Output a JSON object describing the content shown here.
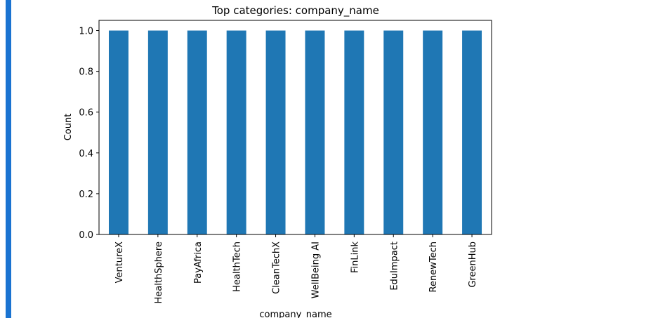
{
  "colors": {
    "accent": "#1a73d1",
    "bar": "#1f77b4",
    "axis": "#000000"
  },
  "chart_data": {
    "type": "bar",
    "title": "Top categories: company_name",
    "xlabel": "company_name",
    "ylabel": "Count",
    "categories": [
      "VentureX",
      "HealthSphere",
      "PayAfrica",
      "HealthTech",
      "CleanTechX",
      "WellBeing AI",
      "FinLink",
      "EduImpact",
      "RenewTech",
      "GreenHub"
    ],
    "values": [
      1,
      1,
      1,
      1,
      1,
      1,
      1,
      1,
      1,
      1
    ],
    "ylim": [
      0,
      1.05
    ],
    "yticks": [
      "0.0",
      "0.2",
      "0.4",
      "0.6",
      "0.8",
      "1.0"
    ],
    "grid": false,
    "legend": "none"
  }
}
